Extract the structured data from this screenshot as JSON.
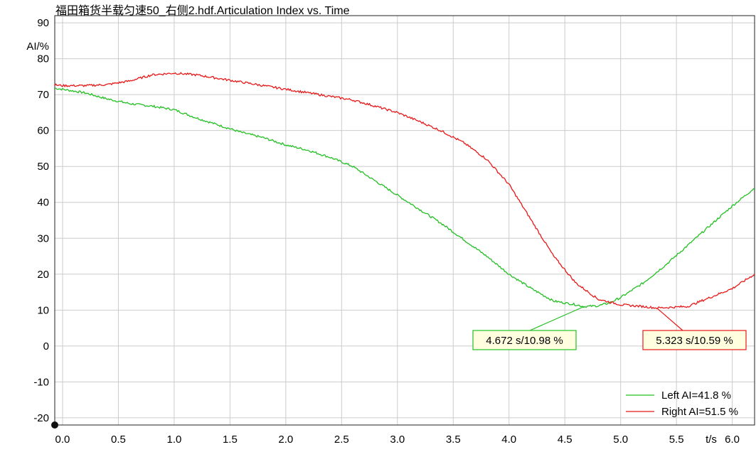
{
  "title": "福田箱货半载匀速50_右侧2.hdf.Articulation Index vs. Time",
  "colors": {
    "left": "#22c022",
    "right": "#e81818",
    "grid": "#cccccc",
    "axis": "#222222"
  },
  "chart_data": {
    "type": "line",
    "title": "福田箱货半载匀速50_右侧2.hdf.Articulation Index vs. Time",
    "xlabel": "t/s",
    "ylabel": "AI/%",
    "xlim": [
      -0.07,
      6.2
    ],
    "ylim": [
      -22,
      92
    ],
    "x_ticks": [
      0.0,
      0.5,
      1.0,
      1.5,
      2.0,
      2.5,
      3.0,
      3.5,
      4.0,
      4.5,
      5.0,
      5.5,
      6.0
    ],
    "x_tick_labels": [
      "0.0",
      "0.5",
      "1.0",
      "1.5",
      "2.0",
      "2.5",
      "3.0",
      "3.5",
      "4.0",
      "4.5",
      "5.0",
      "5.5",
      "6.0"
    ],
    "y_ticks": [
      -20,
      -10,
      0,
      10,
      20,
      30,
      40,
      50,
      60,
      70,
      80,
      90
    ],
    "y_tick_labels": [
      "-20",
      "-10",
      "0",
      "10",
      "20",
      "30",
      "40",
      "50",
      "60",
      "70",
      "80",
      "90"
    ],
    "grid": true,
    "legend_position": "bottom-right",
    "series": [
      {
        "name": "Left AI=41.8 %",
        "color": "#22c022",
        "x": [
          -0.07,
          0.0,
          0.2,
          0.4,
          0.6,
          0.8,
          1.0,
          1.2,
          1.4,
          1.6,
          1.8,
          2.0,
          2.2,
          2.4,
          2.6,
          2.8,
          3.0,
          3.2,
          3.4,
          3.6,
          3.8,
          4.0,
          4.2,
          4.4,
          4.6,
          4.672,
          4.8,
          4.9,
          5.0,
          5.2,
          5.4,
          5.6,
          5.8,
          6.0,
          6.2
        ],
        "y": [
          71.8,
          71.5,
          70.5,
          68.8,
          67.5,
          66.8,
          65.8,
          63.5,
          61.5,
          59.5,
          58.0,
          56.0,
          54.5,
          52.5,
          50.0,
          46.0,
          42.0,
          38.0,
          34.0,
          29.5,
          25.0,
          20.0,
          16.0,
          12.5,
          11.5,
          10.98,
          11.2,
          12.0,
          13.5,
          17.5,
          22.5,
          28.0,
          33.5,
          39.0,
          44.0
        ]
      },
      {
        "name": "Right AI=51.5 %",
        "color": "#e81818",
        "x": [
          -0.07,
          0.0,
          0.2,
          0.4,
          0.6,
          0.8,
          1.0,
          1.2,
          1.4,
          1.6,
          1.8,
          2.0,
          2.2,
          2.4,
          2.6,
          2.8,
          3.0,
          3.2,
          3.4,
          3.6,
          3.8,
          4.0,
          4.2,
          4.4,
          4.6,
          4.8,
          5.0,
          5.2,
          5.323,
          5.4,
          5.6,
          5.8,
          6.0,
          6.2
        ],
        "y": [
          72.7,
          72.5,
          72.5,
          72.8,
          73.8,
          75.5,
          76.0,
          75.5,
          74.5,
          73.5,
          72.5,
          71.5,
          70.5,
          69.5,
          68.5,
          66.8,
          65.0,
          62.5,
          59.8,
          56.5,
          52.0,
          45.0,
          35.0,
          25.0,
          17.5,
          13.0,
          11.5,
          11.0,
          10.59,
          10.7,
          11.0,
          13.5,
          16.0,
          20.0
        ]
      }
    ],
    "annotations": [
      {
        "label": "4.672 s/10.98 %",
        "x": 4.672,
        "y": 10.98,
        "series": "Left AI=41.8 %"
      },
      {
        "label": "5.323 s/10.59 %",
        "x": 5.323,
        "y": 10.59,
        "series": "Right AI=51.5 %"
      }
    ]
  }
}
